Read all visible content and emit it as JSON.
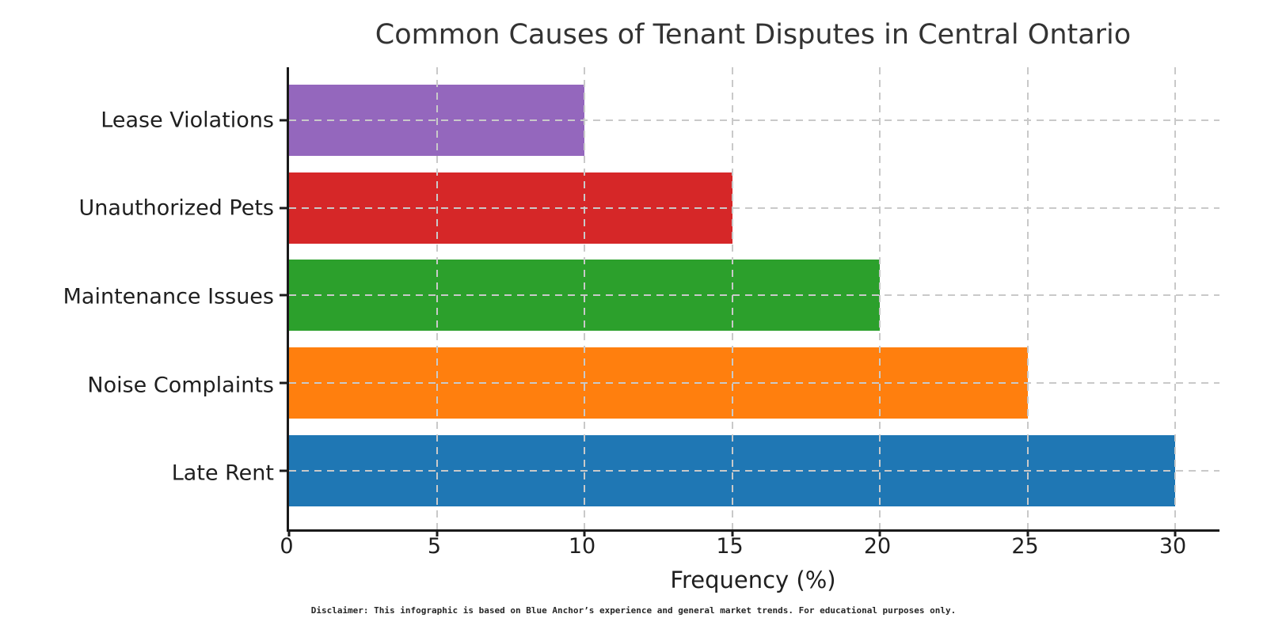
{
  "title": "Common Causes of Tenant Disputes in Central Ontario",
  "chart_data": {
    "type": "bar",
    "orientation": "horizontal",
    "title": "Common Causes of Tenant Disputes in Central Ontario",
    "xlabel": "Frequency (%)",
    "ylabel": "",
    "xlim": [
      0,
      31.5
    ],
    "xticks": [
      0,
      5,
      10,
      15,
      20,
      25,
      30
    ],
    "grid": "dashed both axes, drawn over bars",
    "legend": "none",
    "rows_top_to_bottom": [
      {
        "label": "Lease Violations",
        "value": 10,
        "color": "#9467bd"
      },
      {
        "label": "Unauthorized Pets",
        "value": 15,
        "color": "#d62728"
      },
      {
        "label": "Maintenance Issues",
        "value": 20,
        "color": "#2ca02c"
      },
      {
        "label": "Noise Complaints",
        "value": 25,
        "color": "#ff7f0e"
      },
      {
        "label": "Late Rent",
        "value": 30,
        "color": "#1f77b4"
      }
    ]
  },
  "footer": {
    "disclaimer": "Disclaimer: This infographic is based on Blue Anchor’s experience and general market trends. For educational purposes only."
  },
  "style_colors": {
    "axis": "#1a1a1a",
    "grid": "#c9c9c9",
    "text": "#1f1f1f",
    "background": "#ffffff"
  }
}
